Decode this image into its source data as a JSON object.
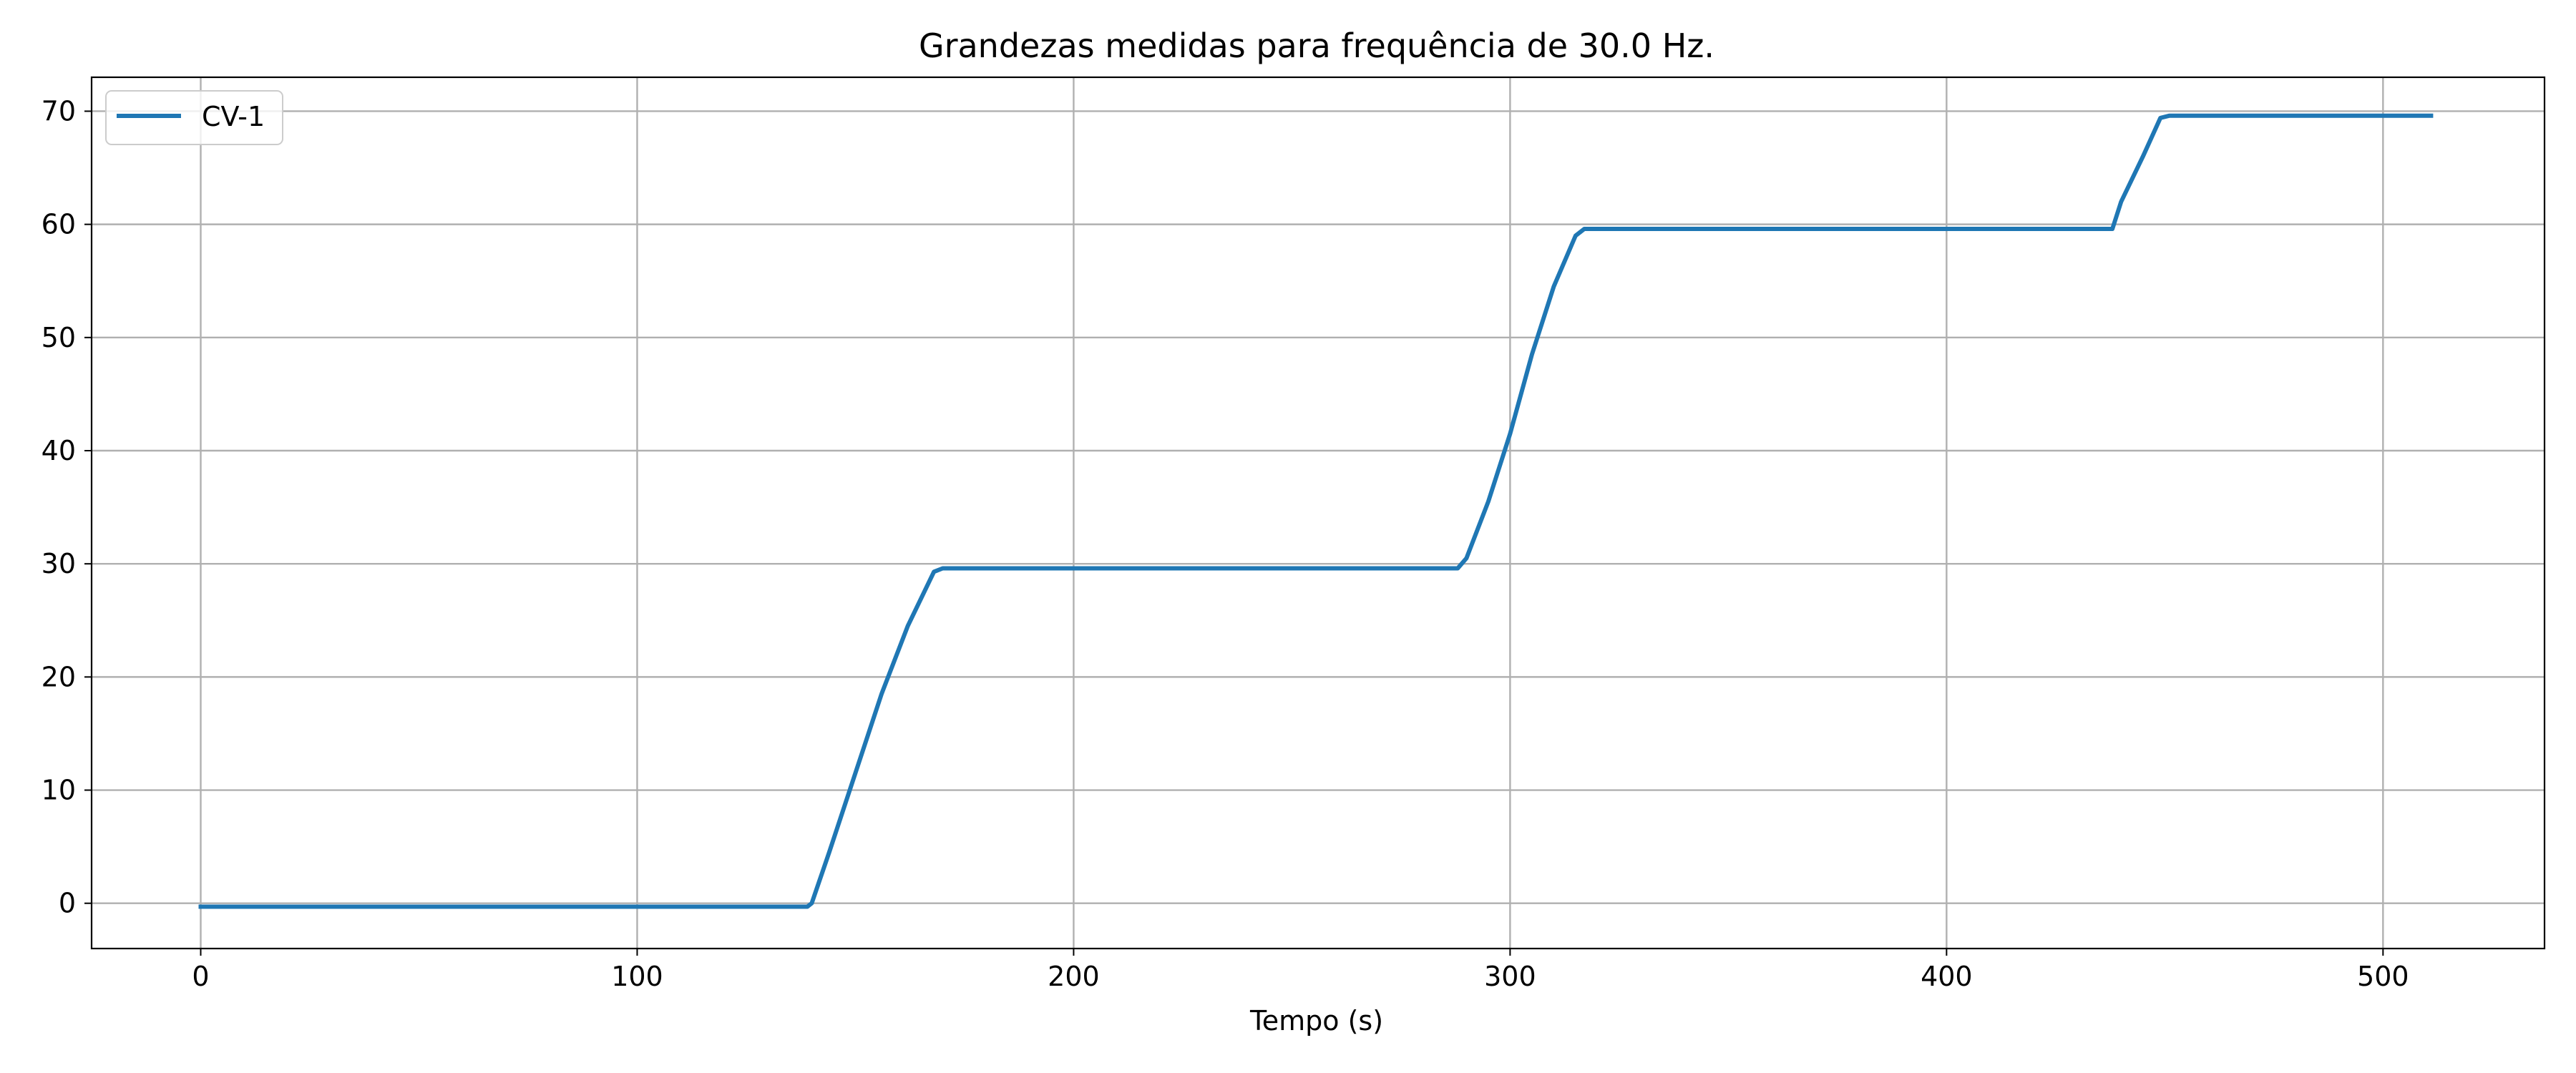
{
  "chart_data": {
    "type": "line",
    "title": "Grandezas medidas para frequência de 30.0 Hz.",
    "xlabel": "Tempo (s)",
    "ylabel": "",
    "xlim": [
      -25,
      537
    ],
    "ylim": [
      -4,
      73
    ],
    "xticks": [
      0,
      100,
      200,
      300,
      400,
      500
    ],
    "yticks": [
      0,
      10,
      20,
      30,
      40,
      50,
      60,
      70
    ],
    "grid": true,
    "legend_position": "top-left",
    "series": [
      {
        "name": "CV-1",
        "color": "#1f77b4",
        "x": [
          0,
          139,
          140,
          144,
          150,
          156,
          162,
          168,
          170,
          200,
          250,
          288,
          290,
          295,
          300,
          305,
          310,
          315,
          317,
          350,
          400,
          438,
          440,
          445,
          449,
          451,
          480,
          511
        ],
        "y": [
          -0.3,
          -0.3,
          0.0,
          4.5,
          11.5,
          18.5,
          24.5,
          29.3,
          29.6,
          29.6,
          29.6,
          29.6,
          30.5,
          35.5,
          41.5,
          48.5,
          54.5,
          59.0,
          59.6,
          59.6,
          59.6,
          59.6,
          62.0,
          66.0,
          69.4,
          69.6,
          69.6,
          69.6
        ]
      }
    ]
  }
}
